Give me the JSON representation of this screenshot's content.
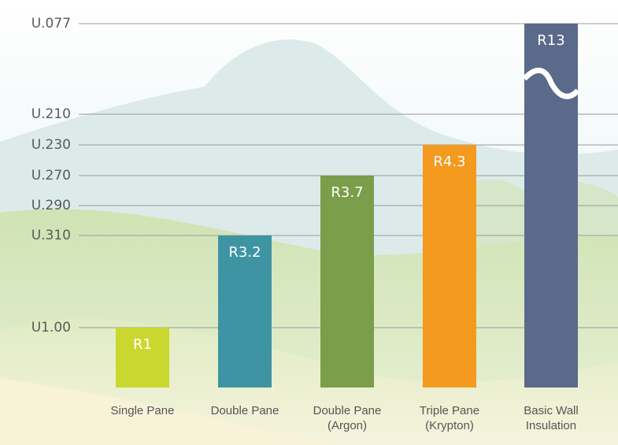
{
  "chart_data": {
    "type": "bar",
    "categories": [
      "Single Pane",
      "Double Pane",
      "Double Pane (Argon)",
      "Triple Pane (Krypton)",
      "Basic Wall Insulation"
    ],
    "values": [
      1,
      3.2,
      3.7,
      4.3,
      13
    ],
    "value_labels": [
      "R1",
      "R3.2",
      "R3.7",
      "R4.3",
      "R13"
    ],
    "colors": [
      "#c9d72f",
      "#3f94a3",
      "#7a9e4a",
      "#f39a1f",
      "#5b6a8a"
    ],
    "ylim": [
      0,
      13
    ],
    "yticks": [
      {
        "value": 1,
        "label": "U1.00"
      },
      {
        "value": 3.2,
        "label": "U.310"
      },
      {
        "value": 3.45,
        "label": "U.290"
      },
      {
        "value": 3.7,
        "label": "U.270"
      },
      {
        "value": 4.3,
        "label": "U.230"
      },
      {
        "value": 4.76,
        "label": "U.210"
      },
      {
        "value": 13,
        "label": "U.077"
      }
    ],
    "grid": true
  }
}
